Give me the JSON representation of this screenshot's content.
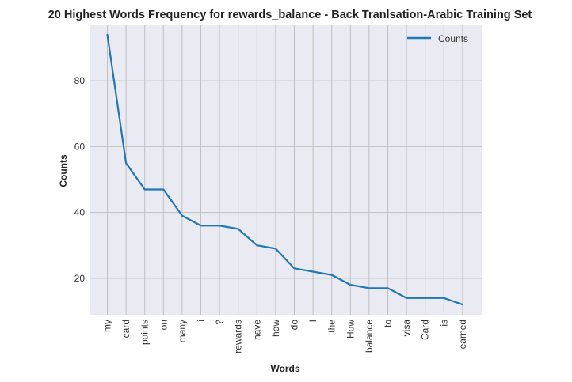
{
  "chart_data": {
    "type": "line",
    "title": "20 Highest Words Frequency for rewards_balance - Back Tranlsation-Arabic Training Set",
    "xlabel": "Words",
    "ylabel": "Counts",
    "categories": [
      "my",
      "card",
      "points",
      "on",
      "many",
      "i",
      "?",
      "rewards",
      "have",
      "how",
      "do",
      "I",
      "the",
      "How",
      "balance",
      "to",
      "visa",
      "Card",
      "is",
      "earned"
    ],
    "series": [
      {
        "name": "Counts",
        "values": [
          94,
          55,
          47,
          47,
          39,
          36,
          36,
          35,
          30,
          29,
          23,
          22,
          21,
          18,
          17,
          17,
          14,
          14,
          14,
          12
        ]
      }
    ],
    "ylim": [
      8.9,
      97.1
    ],
    "yticks": [
      20,
      40,
      60,
      80
    ],
    "grid": true,
    "legend": "top-right",
    "colors": {
      "line": "#1f77b4",
      "plot_background": "#eaeaf2",
      "grid": "#c0c0c0"
    }
  }
}
